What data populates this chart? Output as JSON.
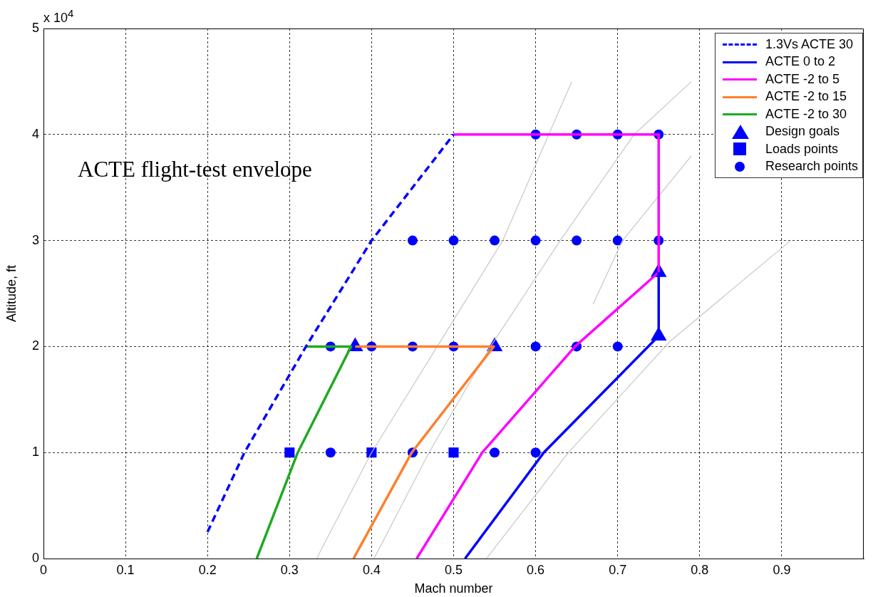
{
  "chart_data": {
    "type": "line",
    "xlabel": "Mach number",
    "ylabel": "Altitude, ft",
    "annotations": [
      "ACTE flight-test envelope",
      "x 10$^{4}$"
    ],
    "xlim": [
      0,
      1
    ],
    "xticks": [
      0,
      0.1,
      0.2,
      0.3,
      0.4,
      0.5,
      0.6,
      0.7,
      0.8,
      0.9
    ],
    "ylim": [
      0,
      5
    ],
    "yticks": [
      0,
      1,
      2,
      3,
      4,
      5
    ],
    "grid": true,
    "legend": "top right",
    "marker": "none",
    "series": [
      {
        "color": "#c8c8c8",
        "x": [
          0.333,
          0.4,
          0.48,
          0.56,
          0.644
        ],
        "values": [
          0,
          1,
          2,
          3,
          4.5
        ]
      },
      {
        "color": "#c8c8c8",
        "x": [
          0.403,
          0.47,
          0.545,
          0.63,
          0.72,
          0.79
        ],
        "values": [
          0,
          1,
          2,
          3,
          4,
          4.5
        ]
      },
      {
        "color": "#c8c8c8",
        "x": [
          0.67,
          0.706,
          0.79
        ],
        "values": [
          2.4,
          3,
          3.8
        ]
      },
      {
        "color": "#c8c8c8",
        "x": [
          0.54,
          0.64,
          0.764,
          0.911
        ],
        "values": [
          0,
          1,
          2.05,
          3
        ]
      },
      {
        "name": "1.3Vs ACTE 30",
        "color": "#0000ff",
        "line_style": "dashed",
        "x": [
          0.2,
          0.245,
          0.32,
          0.4,
          0.5
        ],
        "values": [
          0.25,
          1,
          2,
          3,
          4
        ]
      },
      {
        "name": "ACTE 0 to 2",
        "color": "#0000ff",
        "x": [
          0.514,
          0.61,
          0.75,
          0.75
        ],
        "values": [
          0,
          1,
          2.1,
          2.7
        ]
      },
      {
        "name": "ACTE -2 to 5",
        "color": "#ff00ff",
        "x": [
          0.455,
          0.535,
          0.648,
          0.75,
          0.75,
          0.5
        ],
        "values": [
          0,
          1,
          2,
          2.7,
          4,
          4
        ]
      },
      {
        "name": "ACTE -2 to 15",
        "color": "#ff7f2a",
        "x": [
          0.378,
          0.449,
          0.549,
          0.38
        ],
        "values": [
          0,
          1,
          2,
          2
        ]
      },
      {
        "name": "ACTE -2 to 30",
        "color": "#1faa1f",
        "x": [
          0.26,
          0.31,
          0.375,
          0.32
        ],
        "values": [
          0,
          1,
          2,
          2
        ]
      },
      {
        "type": "scatter",
        "name": "Design goals",
        "color": "#0000ff",
        "marker": "triangle",
        "x": [
          0.38,
          0.55,
          0.75,
          0.75
        ],
        "values": [
          2,
          2,
          2.1,
          2.7
        ]
      },
      {
        "type": "scatter",
        "name": "Loads points",
        "color": "#0000ff",
        "marker": "square",
        "x": [
          0.3,
          0.4,
          0.5
        ],
        "values": [
          1,
          1,
          1
        ]
      },
      {
        "type": "scatter",
        "name": "Research points",
        "color": "#0000ff",
        "marker": "circle",
        "x": [
          0.6,
          0.65,
          0.7,
          0.75,
          0.45,
          0.5,
          0.55,
          0.6,
          0.65,
          0.7,
          0.75,
          0.35,
          0.4,
          0.45,
          0.5,
          0.6,
          0.65,
          0.7,
          0.35,
          0.45,
          0.55,
          0.6
        ],
        "values": [
          4,
          4,
          4,
          4,
          3,
          3,
          3,
          3,
          3,
          3,
          3,
          2,
          2,
          2,
          2,
          2,
          2,
          2,
          1,
          1,
          1,
          1
        ]
      }
    ]
  }
}
